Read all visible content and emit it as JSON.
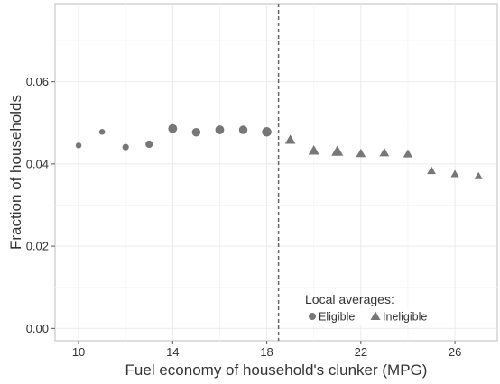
{
  "chart_data": {
    "type": "scatter",
    "xlabel": "Fuel economy of household's clunker (MPG)",
    "ylabel": "Fraction of households",
    "xlim": [
      9.0,
      27.8
    ],
    "ylim": [
      -0.003,
      0.079
    ],
    "x_ticks": [
      10,
      14,
      18,
      22,
      26
    ],
    "x_tick_labels": [
      "10",
      "14",
      "18",
      "22",
      "26"
    ],
    "y_ticks": [
      0.0,
      0.02,
      0.04,
      0.06
    ],
    "y_tick_labels": [
      "0.00",
      "0.02",
      "0.04",
      "0.06"
    ],
    "grid": true,
    "vline": {
      "x": 18.5,
      "style": "dashed"
    },
    "legend": {
      "title": "Local averages:",
      "placement": "bottom-center",
      "entries": [
        {
          "label": "Eligible",
          "marker": "circle"
        },
        {
          "label": "Ineligible",
          "marker": "triangle"
        }
      ]
    },
    "series": [
      {
        "name": "Eligible",
        "marker": "circle",
        "color": "#777777",
        "points": [
          {
            "x": 10,
            "y": 0.0445,
            "size": 1
          },
          {
            "x": 11,
            "y": 0.0478,
            "size": 1
          },
          {
            "x": 12,
            "y": 0.0441,
            "size": 1.2
          },
          {
            "x": 13,
            "y": 0.0448,
            "size": 1.6
          },
          {
            "x": 14,
            "y": 0.0486,
            "size": 2.3
          },
          {
            "x": 15,
            "y": 0.0477,
            "size": 2.1
          },
          {
            "x": 16,
            "y": 0.0483,
            "size": 2.3
          },
          {
            "x": 17,
            "y": 0.0483,
            "size": 2.1
          },
          {
            "x": 18,
            "y": 0.0478,
            "size": 2.6
          }
        ]
      },
      {
        "name": "Ineligible",
        "marker": "triangle",
        "color": "#777777",
        "points": [
          {
            "x": 19,
            "y": 0.0458,
            "size": 2.2
          },
          {
            "x": 20,
            "y": 0.0432,
            "size": 2.4
          },
          {
            "x": 21,
            "y": 0.043,
            "size": 2.8
          },
          {
            "x": 22,
            "y": 0.0425,
            "size": 1.9
          },
          {
            "x": 23,
            "y": 0.0427,
            "size": 1.9
          },
          {
            "x": 24,
            "y": 0.0424,
            "size": 1.8
          },
          {
            "x": 25,
            "y": 0.0383,
            "size": 1.6
          },
          {
            "x": 26,
            "y": 0.0375,
            "size": 1.4
          },
          {
            "x": 27,
            "y": 0.037,
            "size": 1.4
          }
        ]
      }
    ]
  }
}
